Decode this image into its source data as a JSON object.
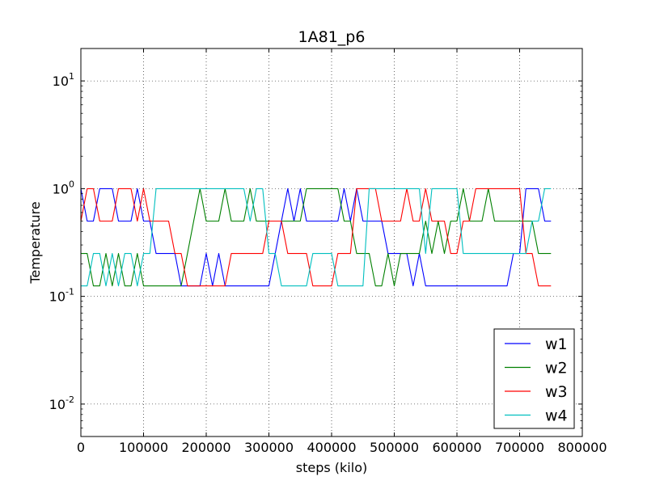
{
  "chart_data": {
    "type": "line",
    "title": "1A81_p6",
    "xlabel": "steps (kilo)",
    "ylabel": "Temperature",
    "yscale": "log",
    "xlim": [
      0,
      800000
    ],
    "ylim": [
      0.005,
      20
    ],
    "xticks": [
      0,
      100000,
      200000,
      300000,
      400000,
      500000,
      600000,
      700000,
      800000
    ],
    "xtick_labels": [
      "0",
      "100000",
      "200000",
      "300000",
      "400000",
      "500000",
      "600000",
      "700000",
      "800000"
    ],
    "yticks": [
      {
        "value": 0.01,
        "base": "10",
        "exp": "-2"
      },
      {
        "value": 0.1,
        "base": "10",
        "exp": "-1"
      },
      {
        "value": 1,
        "base": "10",
        "exp": "0"
      },
      {
        "value": 10,
        "base": "10",
        "exp": "1"
      }
    ],
    "grid": true,
    "legend_position": "lower-right",
    "x": [
      0,
      10000,
      20000,
      30000,
      40000,
      50000,
      60000,
      70000,
      80000,
      90000,
      100000,
      110000,
      120000,
      130000,
      140000,
      150000,
      160000,
      170000,
      180000,
      190000,
      200000,
      210000,
      220000,
      230000,
      240000,
      250000,
      260000,
      270000,
      280000,
      290000,
      300000,
      310000,
      320000,
      330000,
      340000,
      350000,
      360000,
      370000,
      380000,
      390000,
      400000,
      410000,
      420000,
      430000,
      440000,
      450000,
      460000,
      470000,
      480000,
      490000,
      500000,
      510000,
      520000,
      530000,
      540000,
      550000,
      560000,
      570000,
      580000,
      590000,
      600000,
      610000,
      620000,
      630000,
      640000,
      650000,
      660000,
      670000,
      680000,
      690000,
      700000,
      710000,
      720000,
      730000,
      740000,
      750000
    ],
    "series": [
      {
        "name": "w1",
        "color": "#0000ff",
        "values": [
          1,
          0.5,
          0.5,
          1,
          1,
          1,
          0.5,
          0.5,
          0.5,
          1,
          0.5,
          0.5,
          0.25,
          0.25,
          0.25,
          0.25,
          0.125,
          0.125,
          0.125,
          0.125,
          0.25,
          0.125,
          0.25,
          0.125,
          0.125,
          0.125,
          0.125,
          0.125,
          0.125,
          0.125,
          0.125,
          0.25,
          0.5,
          1,
          0.5,
          1,
          0.5,
          0.5,
          0.5,
          0.5,
          0.5,
          0.5,
          1,
          0.5,
          1,
          0.5,
          0.5,
          0.5,
          0.5,
          0.25,
          0.25,
          0.25,
          0.25,
          0.125,
          0.25,
          0.125,
          0.125,
          0.125,
          0.125,
          0.125,
          0.125,
          0.125,
          0.125,
          0.125,
          0.125,
          0.125,
          0.125,
          0.125,
          0.125,
          0.25,
          0.25,
          1,
          1,
          1,
          0.5,
          0.5
        ]
      },
      {
        "name": "w2",
        "color": "#008000",
        "values": [
          0.25,
          0.25,
          0.125,
          0.125,
          0.25,
          0.125,
          0.25,
          0.125,
          0.125,
          0.25,
          0.125,
          0.125,
          0.125,
          0.125,
          0.125,
          0.125,
          0.125,
          0.25,
          0.5,
          1,
          0.5,
          0.5,
          0.5,
          1,
          0.5,
          0.5,
          0.5,
          1,
          0.5,
          0.5,
          0.5,
          0.5,
          0.5,
          0.5,
          0.5,
          0.5,
          1,
          1,
          1,
          1,
          1,
          1,
          0.5,
          0.5,
          0.25,
          0.25,
          0.25,
          0.125,
          0.125,
          0.25,
          0.125,
          0.25,
          0.25,
          0.25,
          0.25,
          0.5,
          0.25,
          0.5,
          0.25,
          0.5,
          0.5,
          1,
          0.5,
          0.5,
          0.5,
          1,
          0.5,
          0.5,
          0.5,
          0.5,
          0.5,
          0.5,
          0.5,
          0.25,
          0.25,
          0.25
        ]
      },
      {
        "name": "w3",
        "color": "#ff0000",
        "values": [
          0.5,
          1,
          1,
          0.5,
          0.5,
          0.5,
          1,
          1,
          1,
          0.5,
          1,
          0.5,
          0.5,
          0.5,
          0.5,
          0.25,
          0.25,
          0.125,
          0.125,
          0.125,
          0.125,
          0.125,
          0.125,
          0.125,
          0.25,
          0.25,
          0.25,
          0.25,
          0.25,
          0.25,
          0.5,
          0.5,
          0.5,
          0.25,
          0.25,
          0.25,
          0.25,
          0.125,
          0.125,
          0.125,
          0.125,
          0.25,
          0.25,
          0.25,
          1,
          1,
          1,
          1,
          0.5,
          0.5,
          0.5,
          0.5,
          1,
          0.5,
          0.5,
          1,
          0.5,
          0.5,
          0.5,
          0.25,
          0.25,
          0.5,
          0.5,
          1,
          1,
          1,
          1,
          1,
          1,
          1,
          1,
          0.25,
          0.25,
          0.125,
          0.125,
          0.125
        ]
      },
      {
        "name": "w4",
        "color": "#00bfbf",
        "values": [
          0.125,
          0.125,
          0.25,
          0.25,
          0.125,
          0.25,
          0.125,
          0.25,
          0.25,
          0.125,
          0.25,
          0.25,
          1,
          1,
          1,
          1,
          1,
          1,
          1,
          1,
          1,
          1,
          1,
          1,
          1,
          1,
          1,
          0.5,
          1,
          1,
          0.25,
          0.25,
          0.125,
          0.125,
          0.125,
          0.125,
          0.125,
          0.25,
          0.25,
          0.25,
          0.25,
          0.125,
          0.125,
          0.125,
          0.125,
          0.125,
          1,
          1,
          1,
          1,
          1,
          1,
          1,
          1,
          1,
          0.25,
          1,
          1,
          1,
          1,
          1,
          0.25,
          0.25,
          0.25,
          0.25,
          0.25,
          0.25,
          0.25,
          0.25,
          0.25,
          0.25,
          0.25,
          0.5,
          0.5,
          1,
          1
        ]
      }
    ]
  }
}
